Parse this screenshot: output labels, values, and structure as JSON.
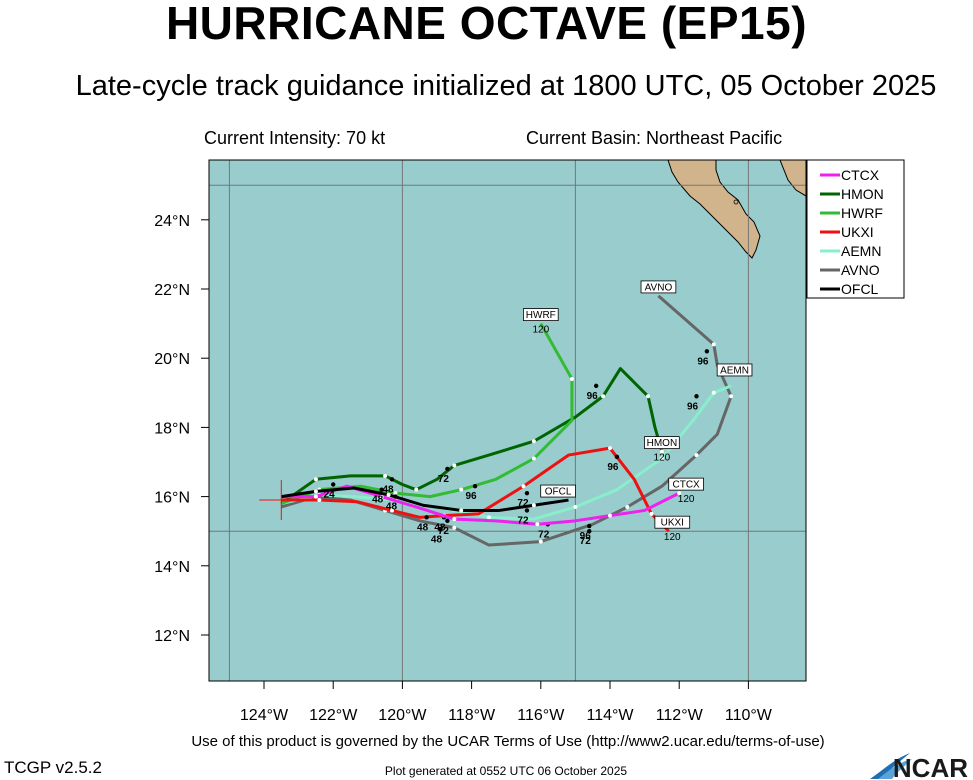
{
  "title": "HURRICANE OCTAVE (EP15)",
  "subtitle": "Late-cycle track guidance initialized at 1800 UTC, 05 October 2025",
  "current_intensity": "Current Intensity: 70 kt",
  "current_basin": "Current Basin: Northeast Pacific",
  "footer_terms": "Use of this product is governed by the UCAR Terms of Use (http://www2.ucar.edu/terms-of-use)",
  "version": "TCGP v2.5.2",
  "generated": "Plot generated at 0552 UTC   06 October 2025",
  "ncar_logo_text": "NCAR",
  "colors": {
    "ocean": "#99cccc",
    "land": "#d2b48c",
    "grid": "#777777"
  },
  "map": {
    "lon_ticks": [
      {
        "lon": -124,
        "label": "124°W"
      },
      {
        "lon": -122,
        "label": "122°W"
      },
      {
        "lon": -120,
        "label": "120°W"
      },
      {
        "lon": -118,
        "label": "118°W"
      },
      {
        "lon": -116,
        "label": "116°W"
      },
      {
        "lon": -114,
        "label": "114°W"
      },
      {
        "lon": -112,
        "label": "112°W"
      },
      {
        "lon": -110,
        "label": "110°W"
      }
    ],
    "lat_ticks": [
      {
        "lat": 12,
        "label": "12°N"
      },
      {
        "lat": 14,
        "label": "14°N"
      },
      {
        "lat": 16,
        "label": "16°N"
      },
      {
        "lat": 18,
        "label": "18°N"
      },
      {
        "lat": 20,
        "label": "20°N"
      },
      {
        "lat": 22,
        "label": "22°N"
      },
      {
        "lat": 24,
        "label": "24°N"
      }
    ],
    "grid_lons": [
      -125,
      -120,
      -115,
      -110
    ],
    "grid_lats": [
      15,
      25
    ],
    "current_position": {
      "lon": -123.5,
      "lat": 15.9
    }
  },
  "legend": [
    {
      "name": "CTCX",
      "color": "#ee22ee"
    },
    {
      "name": "HMON",
      "color": "#006400"
    },
    {
      "name": "HWRF",
      "color": "#33bb33"
    },
    {
      "name": "UKXI",
      "color": "#ee1111"
    },
    {
      "name": "AEMN",
      "color": "#88eecc"
    },
    {
      "name": "AVNO",
      "color": "#666666"
    },
    {
      "name": "OFCL",
      "color": "#000000"
    }
  ],
  "tracks": [
    {
      "name": "AVNO",
      "color": "#666666",
      "points": [
        [
          -123.5,
          15.7
        ],
        [
          -122.5,
          16.0
        ],
        [
          -121.5,
          15.9
        ],
        [
          -120.5,
          15.6
        ],
        [
          -119.5,
          15.3
        ],
        [
          -118.5,
          15.1
        ],
        [
          -117.5,
          14.6
        ],
        [
          -116,
          14.7
        ],
        [
          -114.5,
          15.2
        ],
        [
          -113.5,
          15.7
        ],
        [
          -112.5,
          16.3
        ],
        [
          -111.5,
          17.2
        ],
        [
          -110.9,
          17.8
        ],
        [
          -110.5,
          18.9
        ],
        [
          -110.9,
          19.8
        ],
        [
          -111.0,
          20.4
        ],
        [
          -112.6,
          21.8
        ]
      ],
      "hour_marks": [
        [
          -118.9,
          15.05,
          "48"
        ],
        [
          -114.6,
          15.0,
          "72"
        ],
        [
          -111.2,
          20.2,
          "96"
        ]
      ],
      "end_label": {
        "lon": -112.6,
        "lat": 21.8,
        "text": "AVNO",
        "hour": ""
      }
    },
    {
      "name": "AEMN",
      "color": "#88eecc",
      "points": [
        [
          -123.5,
          15.8
        ],
        [
          -122.4,
          16.05
        ],
        [
          -121.4,
          16.0
        ],
        [
          -120.2,
          15.9
        ],
        [
          -119.0,
          15.7
        ],
        [
          -117.5,
          15.4
        ],
        [
          -116.2,
          15.35
        ],
        [
          -115,
          15.7
        ],
        [
          -113.8,
          16.2
        ],
        [
          -112.5,
          17.1
        ],
        [
          -111.6,
          18.2
        ],
        [
          -111.0,
          19.0
        ],
        [
          -110.5,
          19.2
        ]
      ],
      "hour_marks": [
        [
          -118.8,
          15.4,
          "48"
        ],
        [
          -115.8,
          15.2,
          "72"
        ],
        [
          -111.5,
          18.9,
          "96"
        ]
      ],
      "end_label": {
        "lon": -110.4,
        "lat": 19.4,
        "text": "AEMN",
        "hour": ""
      }
    },
    {
      "name": "HMON",
      "color": "#006400",
      "points": [
        [
          -123.5,
          15.8
        ],
        [
          -122.5,
          16.5
        ],
        [
          -121.5,
          16.6
        ],
        [
          -120.5,
          16.6
        ],
        [
          -120.0,
          16.35
        ],
        [
          -119.6,
          16.2
        ],
        [
          -119.0,
          16.5
        ],
        [
          -118.5,
          16.9
        ],
        [
          -117.5,
          17.2
        ],
        [
          -116.2,
          17.6
        ],
        [
          -115.0,
          18.3
        ],
        [
          -114.2,
          18.9
        ],
        [
          -113.7,
          19.7
        ],
        [
          -112.9,
          18.9
        ],
        [
          -112.7,
          18.0
        ],
        [
          -112.5,
          17.3
        ]
      ],
      "hour_marks": [
        [
          -120.3,
          16.5,
          "48"
        ],
        [
          -118.7,
          16.8,
          "72"
        ],
        [
          -114.4,
          19.2,
          "96"
        ]
      ],
      "end_label": {
        "lon": -112.5,
        "lat": 17.3,
        "text": "HMON",
        "hour": "120"
      }
    },
    {
      "name": "HWRF",
      "color": "#33bb33",
      "points": [
        [
          -123.5,
          15.8
        ],
        [
          -122.4,
          16.2
        ],
        [
          -121.2,
          16.3
        ],
        [
          -120.2,
          16.1
        ],
        [
          -119.2,
          16.0
        ],
        [
          -118.3,
          16.2
        ],
        [
          -117.3,
          16.5
        ],
        [
          -116.2,
          17.1
        ],
        [
          -115.1,
          18.2
        ],
        [
          -115.1,
          19.4
        ],
        [
          -116.0,
          21.0
        ]
      ],
      "hour_marks": [
        [
          -120.2,
          16.0,
          "48"
        ],
        [
          -117.9,
          16.3,
          "96"
        ]
      ],
      "end_label": {
        "lon": -116.0,
        "lat": 21.0,
        "text": "HWRF",
        "hour": "120"
      }
    },
    {
      "name": "UKXI",
      "color": "#ee1111",
      "points": [
        [
          -123.5,
          15.9
        ],
        [
          -122.4,
          15.9
        ],
        [
          -121.3,
          15.85
        ],
        [
          -120.3,
          15.6
        ],
        [
          -119.5,
          15.4
        ],
        [
          -118.8,
          15.45
        ],
        [
          -117.8,
          15.5
        ],
        [
          -116.5,
          16.3
        ],
        [
          -115.2,
          17.2
        ],
        [
          -114.0,
          17.4
        ],
        [
          -113.3,
          16.5
        ],
        [
          -112.8,
          15.5
        ],
        [
          -112.3,
          15.0
        ]
      ],
      "hour_marks": [
        [
          -119.3,
          15.4,
          "48"
        ],
        [
          -116.4,
          16.1,
          "72"
        ],
        [
          -113.8,
          17.15,
          "96"
        ]
      ],
      "end_label": {
        "lon": -112.2,
        "lat": 15.0,
        "text": "UKXI",
        "hour": "120"
      }
    },
    {
      "name": "CTCX",
      "color": "#ee22ee",
      "points": [
        [
          -123.5,
          16.0
        ],
        [
          -122.5,
          16.0
        ],
        [
          -121.6,
          16.3
        ],
        [
          -120.6,
          16.0
        ],
        [
          -119.6,
          15.7
        ],
        [
          -118.5,
          15.35
        ],
        [
          -117.3,
          15.3
        ],
        [
          -116.1,
          15.2
        ],
        [
          -115.0,
          15.3
        ],
        [
          -114.0,
          15.45
        ],
        [
          -113.0,
          15.6
        ],
        [
          -112.0,
          16.1
        ]
      ],
      "hour_marks": [
        [
          -118.7,
          15.3,
          "72"
        ],
        [
          -114.6,
          15.15,
          "96"
        ]
      ],
      "end_label": {
        "lon": -111.8,
        "lat": 16.1,
        "text": "CTCX",
        "hour": "120"
      }
    },
    {
      "name": "OFCL",
      "color": "#000000",
      "points": [
        [
          -123.5,
          16.0
        ],
        [
          -122.5,
          16.15
        ],
        [
          -121.4,
          16.25
        ],
        [
          -120.4,
          16.05
        ],
        [
          -119.4,
          15.75
        ],
        [
          -118.3,
          15.6
        ],
        [
          -117.2,
          15.6
        ],
        [
          -116.2,
          15.75
        ],
        [
          -115.2,
          15.9
        ]
      ],
      "hour_marks": [
        [
          -122.0,
          16.35,
          "24"
        ],
        [
          -120.6,
          16.2,
          "48"
        ],
        [
          -116.4,
          15.6,
          "72"
        ]
      ],
      "end_label": {
        "lon": -115.5,
        "lat": 15.9,
        "text": "OFCL",
        "hour": ""
      }
    }
  ]
}
